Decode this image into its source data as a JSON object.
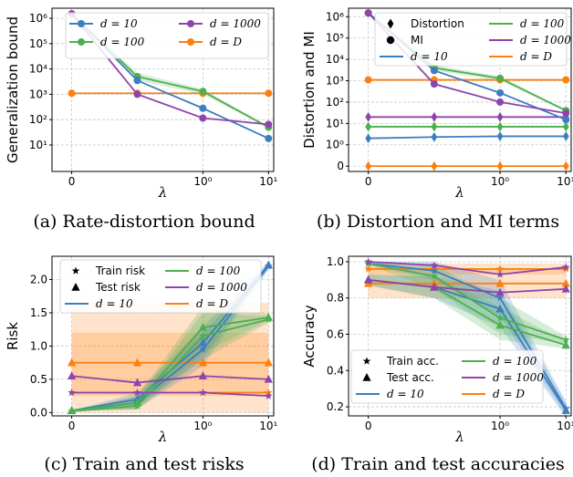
{
  "colors": {
    "d10": "#3d7ebf",
    "d100": "#4caf50",
    "d1000": "#8e44ad",
    "dD": "#ff7f0e"
  },
  "chart_data": [
    {
      "id": "a",
      "type": "line",
      "caption": "(a) Rate-distortion bound",
      "ylabel": "Generalization bound",
      "xlabel": "λ",
      "xscale": "symlog",
      "yscale": "log",
      "xlim": [
        -0.03,
        12
      ],
      "ylim": [
        0.9,
        2500000
      ],
      "xticks": [
        {
          "v": 0,
          "t": "0"
        },
        {
          "v": 1,
          "t": "10⁰"
        },
        {
          "v": 10,
          "t": "10¹"
        }
      ],
      "yticks": [
        {
          "v": 10,
          "t": "10¹"
        },
        {
          "v": 100,
          "t": "10²"
        },
        {
          "v": 1000,
          "t": "10³"
        },
        {
          "v": 10000,
          "t": "10⁴"
        },
        {
          "v": 100000,
          "t": "10⁵"
        },
        {
          "v": 1000000,
          "t": "10⁶"
        }
      ],
      "legend": [
        {
          "key": "d10",
          "label": "d = 10",
          "marker": "circle"
        },
        {
          "key": "d1000",
          "label": "d = 1000",
          "marker": "circle"
        },
        {
          "key": "d100",
          "label": "d = 100",
          "marker": "circle"
        },
        {
          "key": "dD",
          "label": "d = D",
          "marker": "circle"
        }
      ],
      "series": [
        {
          "key": "dD",
          "marker": "circle",
          "x": [
            0,
            0.1,
            1,
            10
          ],
          "y": [
            1100,
            1100,
            1100,
            1100
          ]
        },
        {
          "key": "d100",
          "marker": "circle",
          "x": [
            0,
            0.1,
            1,
            10
          ],
          "y": [
            1500000,
            5000,
            1300,
            50
          ],
          "band": [
            [
              1500000,
              1500000
            ],
            [
              3500,
              7000
            ],
            [
              1000,
              1600
            ],
            [
              45,
              55
            ]
          ]
        },
        {
          "key": "d10",
          "marker": "circle",
          "x": [
            0,
            0.1,
            1,
            10
          ],
          "y": [
            1500000,
            3500,
            280,
            18
          ]
        },
        {
          "key": "d1000",
          "marker": "circle",
          "x": [
            0,
            0.1,
            1,
            10
          ],
          "y": [
            1500000,
            1000,
            115,
            65
          ]
        }
      ]
    },
    {
      "id": "b",
      "type": "line",
      "caption": "(b) Distortion and MI terms",
      "ylabel": "Distortion and MI",
      "xlabel": "λ",
      "xscale": "symlog",
      "yscale": "symlog",
      "xlim": [
        -0.03,
        12
      ],
      "ylim": [
        -0.25,
        2500000
      ],
      "xticks": [
        {
          "v": 0,
          "t": "0"
        },
        {
          "v": 1,
          "t": "10⁰"
        },
        {
          "v": 10,
          "t": "10¹"
        }
      ],
      "yticks": [
        {
          "v": 0,
          "t": "0"
        },
        {
          "v": 1,
          "t": "10⁰"
        },
        {
          "v": 10,
          "t": "10¹"
        },
        {
          "v": 100,
          "t": "10²"
        },
        {
          "v": 1000,
          "t": "10³"
        },
        {
          "v": 10000,
          "t": "10⁴"
        },
        {
          "v": 100000,
          "t": "10⁵"
        },
        {
          "v": 1000000,
          "t": "10⁶"
        }
      ],
      "legend": [
        {
          "key": "black",
          "label": "Distortion",
          "marker": "diamond"
        },
        {
          "key": "d100",
          "label": "d = 100",
          "marker": "line"
        },
        {
          "key": "black",
          "label": "MI",
          "marker": "circle"
        },
        {
          "key": "d1000",
          "label": "d = 1000",
          "marker": "line"
        },
        {
          "key": "d10",
          "label": "d = 10",
          "marker": "line"
        },
        {
          "key": "dD",
          "label": "d = D",
          "marker": "line"
        }
      ],
      "series": [
        {
          "key": "dD",
          "marker": "diamond",
          "x": [
            0,
            0.1,
            1,
            10
          ],
          "y": [
            0,
            0,
            0,
            0
          ]
        },
        {
          "key": "dD",
          "marker": "circle",
          "x": [
            0,
            0.1,
            1,
            10
          ],
          "y": [
            1100,
            1100,
            1100,
            1100
          ]
        },
        {
          "key": "d10",
          "marker": "diamond",
          "x": [
            0,
            0.1,
            1,
            10
          ],
          "y": [
            2,
            2.3,
            2.5,
            2.5
          ]
        },
        {
          "key": "d100",
          "marker": "diamond",
          "x": [
            0,
            0.1,
            1,
            10
          ],
          "y": [
            7,
            7,
            7,
            7
          ]
        },
        {
          "key": "d1000",
          "marker": "diamond",
          "x": [
            0,
            0.1,
            1,
            10
          ],
          "y": [
            20,
            20,
            20,
            20
          ]
        },
        {
          "key": "d100",
          "marker": "circle",
          "x": [
            0,
            0.1,
            1,
            10
          ],
          "y": [
            1500000,
            4000,
            1300,
            40
          ],
          "band": [
            [
              1500000,
              1500000
            ],
            [
              3000,
              5500
            ],
            [
              1000,
              1600
            ],
            [
              35,
              45
            ]
          ]
        },
        {
          "key": "d10",
          "marker": "circle",
          "x": [
            0,
            0.1,
            1,
            10
          ],
          "y": [
            1500000,
            3000,
            270,
            15
          ]
        },
        {
          "key": "d1000",
          "marker": "circle",
          "x": [
            0,
            0.1,
            1,
            10
          ],
          "y": [
            1500000,
            700,
            100,
            30
          ]
        }
      ]
    },
    {
      "id": "c",
      "type": "line",
      "caption": "(c) Train and test risks",
      "ylabel": "Risk",
      "xlabel": "λ",
      "xscale": "symlog",
      "yscale": "linear",
      "xlim": [
        -0.03,
        12
      ],
      "ylim": [
        -0.05,
        2.35
      ],
      "xticks": [
        {
          "v": 0,
          "t": "0"
        },
        {
          "v": 1,
          "t": "10⁰"
        },
        {
          "v": 10,
          "t": "10¹"
        }
      ],
      "yticks": [
        {
          "v": 0,
          "t": "0.0"
        },
        {
          "v": 0.5,
          "t": "0.5"
        },
        {
          "v": 1,
          "t": "1.0"
        },
        {
          "v": 1.5,
          "t": "1.5"
        },
        {
          "v": 2,
          "t": "2.0"
        }
      ],
      "legend": [
        {
          "key": "black",
          "label": "Train risk",
          "marker": "star"
        },
        {
          "key": "d100",
          "label": "d = 100",
          "marker": "line"
        },
        {
          "key": "black",
          "label": "Test risk",
          "marker": "triangle"
        },
        {
          "key": "d1000",
          "label": "d = 1000",
          "marker": "line"
        },
        {
          "key": "d10",
          "label": "d = 10",
          "marker": "line"
        },
        {
          "key": "dD",
          "label": "d = D",
          "marker": "line"
        }
      ],
      "series": [
        {
          "key": "dD",
          "marker": "star",
          "x": [
            0,
            0.1,
            1,
            10
          ],
          "y": [
            0.3,
            0.3,
            0.3,
            0.3
          ],
          "band": [
            [
              0.25,
              1.2
            ],
            [
              0.25,
              1.2
            ],
            [
              0.25,
              1.2
            ],
            [
              0.25,
              1.2
            ]
          ]
        },
        {
          "key": "dD",
          "marker": "triangle",
          "x": [
            0,
            0.1,
            1,
            10
          ],
          "y": [
            0.75,
            0.75,
            0.75,
            0.75
          ],
          "band": [
            [
              0.0,
              1.65
            ],
            [
              0.0,
              1.65
            ],
            [
              0.0,
              1.65
            ],
            [
              0.0,
              1.65
            ]
          ]
        },
        {
          "key": "d10",
          "marker": "star",
          "x": [
            0,
            0.1,
            1,
            10
          ],
          "y": [
            0.02,
            0.15,
            0.95,
            2.2
          ],
          "band": [
            [
              0.02,
              0.02
            ],
            [
              0.05,
              0.25
            ],
            [
              0.7,
              1.2
            ],
            [
              2.15,
              2.25
            ]
          ]
        },
        {
          "key": "d10",
          "marker": "triangle",
          "x": [
            0,
            0.1,
            1,
            10
          ],
          "y": [
            0.03,
            0.2,
            1.05,
            2.22
          ],
          "band": [
            [
              0.03,
              0.03
            ],
            [
              0.1,
              0.3
            ],
            [
              0.8,
              1.3
            ],
            [
              2.17,
              2.27
            ]
          ]
        },
        {
          "key": "d100",
          "marker": "star",
          "x": [
            0,
            0.1,
            1,
            10
          ],
          "y": [
            0.02,
            0.1,
            1.15,
            1.4
          ],
          "band": [
            [
              0.02,
              0.02
            ],
            [
              0.05,
              0.2
            ],
            [
              0.8,
              1.5
            ],
            [
              1.35,
              1.45
            ]
          ]
        },
        {
          "key": "d100",
          "marker": "triangle",
          "x": [
            0,
            0.1,
            1,
            10
          ],
          "y": [
            0.03,
            0.15,
            1.28,
            1.43
          ],
          "band": [
            [
              0.03,
              0.03
            ],
            [
              0.05,
              0.25
            ],
            [
              0.9,
              1.6
            ],
            [
              1.38,
              1.48
            ]
          ]
        },
        {
          "key": "d1000",
          "marker": "star",
          "x": [
            0,
            0.1,
            1,
            10
          ],
          "y": [
            0.3,
            0.3,
            0.3,
            0.25
          ]
        },
        {
          "key": "d1000",
          "marker": "triangle",
          "x": [
            0,
            0.1,
            1,
            10
          ],
          "y": [
            0.55,
            0.45,
            0.55,
            0.5
          ]
        }
      ]
    },
    {
      "id": "d",
      "type": "line",
      "caption": "(d) Train and test accuracies",
      "ylabel": "Accuracy",
      "xlabel": "λ",
      "xscale": "symlog",
      "yscale": "linear",
      "xlim": [
        -0.03,
        12
      ],
      "ylim": [
        0.15,
        1.03
      ],
      "xticks": [
        {
          "v": 0,
          "t": "0"
        },
        {
          "v": 1,
          "t": "10⁰"
        },
        {
          "v": 10,
          "t": "10¹"
        }
      ],
      "yticks": [
        {
          "v": 0.2,
          "t": "0.2"
        },
        {
          "v": 0.4,
          "t": "0.4"
        },
        {
          "v": 0.6,
          "t": "0.6"
        },
        {
          "v": 0.8,
          "t": "0.8"
        },
        {
          "v": 1.0,
          "t": "1.0"
        }
      ],
      "legend": [
        {
          "key": "black",
          "label": "Train acc.",
          "marker": "star"
        },
        {
          "key": "d100",
          "label": "d = 100",
          "marker": "line"
        },
        {
          "key": "black",
          "label": "Test acc.",
          "marker": "triangle"
        },
        {
          "key": "d1000",
          "label": "d = 1000",
          "marker": "line"
        },
        {
          "key": "d10",
          "label": "d = 10",
          "marker": "line"
        },
        {
          "key": "dD",
          "label": "d = D",
          "marker": "line"
        }
      ],
      "series": [
        {
          "key": "dD",
          "marker": "star",
          "x": [
            0,
            0.1,
            1,
            10
          ],
          "y": [
            0.96,
            0.96,
            0.96,
            0.96
          ],
          "band": [
            [
              0.93,
              0.99
            ],
            [
              0.93,
              0.99
            ],
            [
              0.93,
              0.99
            ],
            [
              0.93,
              0.99
            ]
          ]
        },
        {
          "key": "dD",
          "marker": "triangle",
          "x": [
            0,
            0.1,
            1,
            10
          ],
          "y": [
            0.88,
            0.88,
            0.88,
            0.88
          ],
          "band": [
            [
              0.8,
              0.96
            ],
            [
              0.8,
              0.96
            ],
            [
              0.8,
              0.96
            ],
            [
              0.8,
              0.96
            ]
          ]
        },
        {
          "key": "d10",
          "marker": "star",
          "x": [
            0,
            0.1,
            1,
            10
          ],
          "y": [
            0.99,
            0.95,
            0.8,
            0.19
          ],
          "band": [
            [
              0.98,
              1.0
            ],
            [
              0.9,
              1.0
            ],
            [
              0.7,
              0.9
            ],
            [
              0.15,
              0.23
            ]
          ]
        },
        {
          "key": "d10",
          "marker": "triangle",
          "x": [
            0,
            0.1,
            1,
            10
          ],
          "y": [
            0.9,
            0.86,
            0.74,
            0.18
          ],
          "band": [
            [
              0.87,
              0.93
            ],
            [
              0.8,
              0.92
            ],
            [
              0.64,
              0.84
            ],
            [
              0.14,
              0.22
            ]
          ]
        },
        {
          "key": "d100",
          "marker": "star",
          "x": [
            0,
            0.1,
            1,
            10
          ],
          "y": [
            0.99,
            0.92,
            0.69,
            0.57
          ],
          "band": [
            [
              0.98,
              1.0
            ],
            [
              0.85,
              0.98
            ],
            [
              0.6,
              0.8
            ],
            [
              0.55,
              0.59
            ]
          ]
        },
        {
          "key": "d100",
          "marker": "triangle",
          "x": [
            0,
            0.1,
            1,
            10
          ],
          "y": [
            0.9,
            0.86,
            0.65,
            0.54
          ],
          "band": [
            [
              0.87,
              0.93
            ],
            [
              0.8,
              0.92
            ],
            [
              0.57,
              0.75
            ],
            [
              0.52,
              0.56
            ]
          ]
        },
        {
          "key": "d1000",
          "marker": "star",
          "x": [
            0,
            0.1,
            1,
            10
          ],
          "y": [
            1.0,
            0.98,
            0.93,
            0.97
          ]
        },
        {
          "key": "d1000",
          "marker": "triangle",
          "x": [
            0,
            0.1,
            1,
            10
          ],
          "y": [
            0.9,
            0.86,
            0.83,
            0.85
          ]
        }
      ]
    }
  ]
}
